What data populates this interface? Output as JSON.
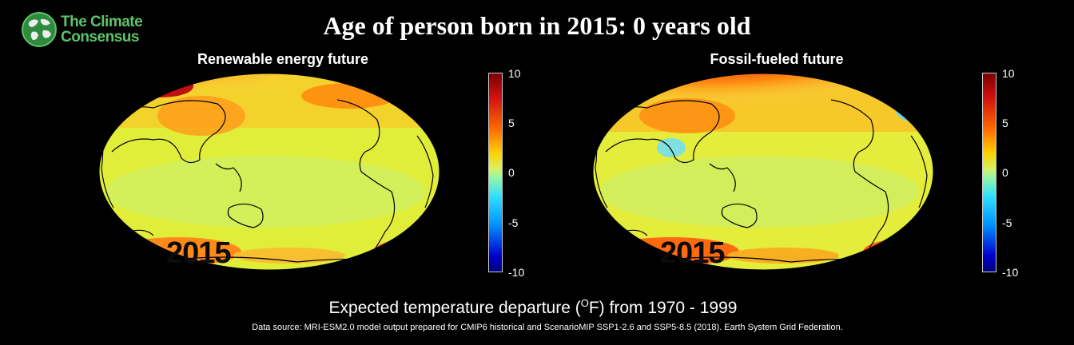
{
  "logo": {
    "line1": "The Climate",
    "line2": "Consensus",
    "icon": "globe-icon"
  },
  "title": "Age of person born in 2015: 0 years old",
  "panels": [
    {
      "title": "Renewable energy future",
      "year": "2015"
    },
    {
      "title": "Fossil-fueled future",
      "year": "2015"
    }
  ],
  "colorbar": {
    "ticks": [
      "10",
      "5",
      "0",
      "-5",
      "-10"
    ],
    "range": [
      -10,
      10
    ]
  },
  "xlabel": {
    "before": "Expected temperature departure (",
    "sup": "O",
    "after": "F) from 1970 - 1999"
  },
  "source": "Data source: MRI-ESM2.0 model output prepared for CMIP6 historical and ScenarioMIP SSP1-2.6 and SSP5-8.5 (2018). Earth System Grid Federation.",
  "colors": {
    "background": "#000000",
    "logo": "#5cc46a"
  }
}
